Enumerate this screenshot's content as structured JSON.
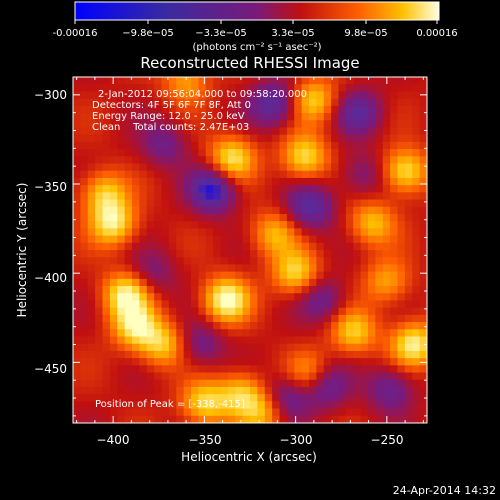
{
  "colorbar": {
    "ticks": [
      "-0.00016",
      "−9.8e−05",
      "−3.3e−05",
      "3.3e−05",
      "9.8e−05",
      "0.00016"
    ],
    "unit_label": "(photons cm⁻² s⁻¹ asec⁻²)"
  },
  "chart_data": {
    "type": "heatmap",
    "title": "Reconstructed RHESSI Image",
    "xlabel": "Heliocentric X (arcsec)",
    "ylabel": "Heliocentric Y (arcsec)",
    "xlim": [
      -422,
      -228
    ],
    "ylim": [
      -484,
      -290
    ],
    "xticks": [
      "−400",
      "−350",
      "−300",
      "−250"
    ],
    "yticks": [
      "−300",
      "−350",
      "−400",
      "−450"
    ],
    "color_range": [
      -0.00016,
      0.00016
    ],
    "colormap": [
      "#0000ff",
      "#5a2a9a",
      "#7a1a7a",
      "#c01010",
      "#ff6000",
      "#ffc000",
      "#ffffc0"
    ],
    "annotations": {
      "time_range": "2-Jan-2012 09:56:04.000 to 09:58:20.000",
      "detectors": "Detectors: 4F 5F 6F 7F 8F, Att 0",
      "energy": "Energy Range: 12.0 - 25.0 keV",
      "clean": "Clean    Total counts: 2.47E+03",
      "peak": "Position of Peak = [-338,-415]"
    },
    "bright_blobs": [
      {
        "x": -338,
        "y": -415,
        "v": 1.0
      },
      {
        "x": -335,
        "y": -336,
        "v": 0.85
      },
      {
        "x": -393,
        "y": -412,
        "v": 0.9
      },
      {
        "x": -388,
        "y": -430,
        "v": 0.8
      },
      {
        "x": -400,
        "y": -372,
        "v": 0.85
      },
      {
        "x": -405,
        "y": -355,
        "v": 0.7
      },
      {
        "x": -373,
        "y": -440,
        "v": 0.7
      },
      {
        "x": -330,
        "y": -468,
        "v": 0.7
      },
      {
        "x": -350,
        "y": -473,
        "v": 0.75
      },
      {
        "x": -290,
        "y": -303,
        "v": 0.7
      },
      {
        "x": -295,
        "y": -335,
        "v": 0.8
      },
      {
        "x": -240,
        "y": -343,
        "v": 0.85
      },
      {
        "x": -235,
        "y": -440,
        "v": 0.9
      },
      {
        "x": -268,
        "y": -433,
        "v": 0.7
      },
      {
        "x": -300,
        "y": -400,
        "v": 0.75
      },
      {
        "x": -258,
        "y": -372,
        "v": 0.65
      },
      {
        "x": -292,
        "y": -457,
        "v": 0.6
      },
      {
        "x": -312,
        "y": -378,
        "v": 0.6
      },
      {
        "x": -360,
        "y": -292,
        "v": 0.55
      },
      {
        "x": -250,
        "y": -405,
        "v": 0.55
      },
      {
        "x": -317,
        "y": -478,
        "v": 0.6
      }
    ],
    "dark_blobs": [
      {
        "x": -345,
        "y": -353,
        "v": -0.9
      },
      {
        "x": -312,
        "y": -305,
        "v": -0.7
      },
      {
        "x": -292,
        "y": -363,
        "v": -0.7
      },
      {
        "x": -265,
        "y": -310,
        "v": -0.6
      },
      {
        "x": -284,
        "y": -463,
        "v": -0.65
      },
      {
        "x": -305,
        "y": -470,
        "v": -0.6
      },
      {
        "x": -248,
        "y": -465,
        "v": -0.55
      },
      {
        "x": -352,
        "y": -440,
        "v": -0.45
      },
      {
        "x": -372,
        "y": -328,
        "v": -0.45
      },
      {
        "x": -285,
        "y": -415,
        "v": -0.5
      },
      {
        "x": -378,
        "y": -400,
        "v": -0.35
      },
      {
        "x": -263,
        "y": -345,
        "v": -0.4
      }
    ]
  },
  "footer": {
    "timestamp": "24-Apr-2014 14:32"
  }
}
